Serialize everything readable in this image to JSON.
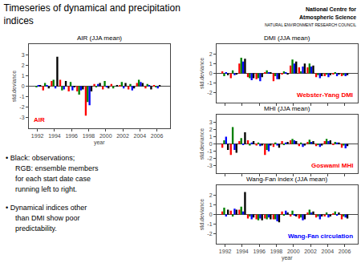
{
  "title": "Timeseries of dynamical and precipitation\nindices",
  "annotations": [
    "National Centre for",
    "Atmospheric Science",
    "NATURAL ENVIRONMENT RESEARCH COUNCIL",
    "• Black: observations;",
    "RGB: ensemble members",
    "for each start date case",
    "running left to right.",
    "• Dynamical indices other",
    "than DMI show poor",
    "predictability."
  ],
  "chart_data": [
    {
      "type": "bar",
      "title": "AIR (JJA mean)",
      "xlabel": "year",
      "ylabel": "std.deviance",
      "annotations": [
        {
          "text": "AIR",
          "color": "red"
        }
      ],
      "x": [
        1992,
        1993,
        1994,
        1995,
        1996,
        1997,
        1998,
        1999,
        2000,
        2001,
        2002,
        2003,
        2004,
        2005,
        2006
      ],
      "xlim": [
        1991.0,
        2007.5
      ],
      "xticks": [
        1992,
        1994,
        1996,
        1998,
        2000,
        2002,
        2004,
        2006
      ],
      "ylim": [
        -4,
        4
      ],
      "yticks": [
        -3,
        -2,
        -1,
        0,
        1,
        2,
        3
      ],
      "grid": false,
      "series": [
        {
          "color": "red",
          "values": [
            0.0,
            -0.4,
            0.5,
            0.6,
            -0.5,
            -0.5,
            -2.8,
            0.2,
            -0.3,
            0.2,
            0.1,
            -0.3,
            0.3,
            -0.2,
            0.1
          ]
        },
        {
          "color": "green",
          "values": [
            -0.1,
            0.3,
            0.6,
            -0.4,
            0.4,
            -0.8,
            -1.5,
            -0.1,
            0.5,
            -0.2,
            0.4,
            0.2,
            0.6,
            0.2,
            -0.1
          ]
        },
        {
          "color": "blue",
          "values": [
            0.1,
            0.1,
            -0.2,
            -0.3,
            -0.4,
            -0.4,
            -1.8,
            0.2,
            -0.1,
            0.0,
            -0.2,
            -0.4,
            0.4,
            0.1,
            -0.2
          ]
        },
        {
          "color": "black",
          "values": [
            0.1,
            -0.2,
            2.8,
            0.5,
            -0.1,
            -0.3,
            -0.5,
            0.3,
            -0.2,
            0.1,
            0.3,
            -0.2,
            0.3,
            -0.3,
            0.1
          ]
        }
      ]
    },
    {
      "type": "bar",
      "title": "DMI (JJA mean)",
      "ylabel": "std.deviance",
      "annotations": [
        {
          "text": "Webster-Yang DMI",
          "color": "red"
        }
      ],
      "x": [
        1992,
        1993,
        1994,
        1995,
        1996,
        1997,
        1998,
        1999,
        2000,
        2001,
        2002,
        2003,
        2004,
        2005,
        2006
      ],
      "xlim": [
        1991.0,
        2007.5
      ],
      "xticks": [
        1992,
        1994,
        1996,
        1998,
        2000,
        2002,
        2004,
        2006
      ],
      "ylim": [
        -3,
        3
      ],
      "yticks": [
        -2,
        -1,
        0,
        1,
        2
      ],
      "grid": false,
      "tick_labels": "y",
      "series": [
        {
          "color": "red",
          "values": [
            0.2,
            -0.5,
            1.0,
            -0.4,
            -0.6,
            0.1,
            -0.8,
            -0.1,
            0.8,
            0.6,
            0.6,
            -0.4,
            -0.3,
            -0.1,
            -0.3
          ]
        },
        {
          "color": "green",
          "values": [
            -0.3,
            0.3,
            1.6,
            -0.5,
            -0.5,
            0.3,
            -0.3,
            0.2,
            1.4,
            0.2,
            1.0,
            -0.2,
            -0.1,
            0.1,
            -0.2
          ]
        },
        {
          "color": "blue",
          "values": [
            0.1,
            -0.2,
            1.2,
            -0.7,
            -0.8,
            0.1,
            -0.6,
            0.1,
            1.0,
            0.7,
            0.7,
            -0.5,
            -0.4,
            -0.3,
            -0.3
          ]
        },
        {
          "color": "black",
          "values": [
            -0.2,
            -0.1,
            1.5,
            -0.5,
            -0.4,
            0.1,
            -0.6,
            -0.1,
            1.2,
            1.0,
            0.8,
            -0.3,
            -0.2,
            -0.1,
            -0.2
          ]
        }
      ]
    },
    {
      "type": "bar",
      "title": "MHI (JJA mean)",
      "ylabel": "std.deviance",
      "annotations": [
        {
          "text": "Goswami MHI",
          "color": "red"
        }
      ],
      "x": [
        1992,
        1993,
        1994,
        1995,
        1996,
        1997,
        1998,
        1999,
        2000,
        2001,
        2002,
        2003,
        2004,
        2005,
        2006
      ],
      "xlim": [
        1991.0,
        2007.5
      ],
      "xticks": [
        1992,
        1994,
        1996,
        1998,
        2000,
        2002,
        2004,
        2006
      ],
      "ylim": [
        -4,
        4
      ],
      "yticks": [
        -3,
        -2,
        -1,
        0,
        1,
        2,
        3
      ],
      "grid": false,
      "tick_labels": "y",
      "series": [
        {
          "color": "red",
          "values": [
            -0.5,
            -1.5,
            0.4,
            0.5,
            -0.2,
            -1.5,
            -0.4,
            0.4,
            0.5,
            -0.3,
            0.3,
            -0.3,
            0.4,
            -0.1,
            -0.5
          ]
        },
        {
          "color": "green",
          "values": [
            0.5,
            2.3,
            0.8,
            -0.2,
            0.2,
            -0.8,
            0.2,
            -0.1,
            0.7,
            0.2,
            0.6,
            -0.1,
            0.7,
            0.3,
            -0.2
          ]
        },
        {
          "color": "blue",
          "values": [
            1.0,
            -0.8,
            -0.1,
            0.2,
            -0.3,
            -1.0,
            -0.2,
            0.2,
            0.5,
            -0.4,
            0.3,
            -0.4,
            0.4,
            0.2,
            -0.6
          ]
        },
        {
          "color": "black",
          "values": [
            -0.8,
            -1.2,
            1.6,
            0.4,
            -0.2,
            -0.2,
            -0.5,
            0.3,
            0.4,
            -0.2,
            0.4,
            -0.2,
            0.5,
            0.2,
            -0.3
          ]
        }
      ]
    },
    {
      "type": "bar",
      "title": "Wang-Fan index (JJA mean)",
      "xlabel": "year",
      "ylabel": "std.deviance",
      "annotations": [
        {
          "text": "Wang-Fan circulation",
          "color": "blue"
        }
      ],
      "x": [
        1992,
        1993,
        1994,
        1995,
        1996,
        1997,
        1998,
        1999,
        2000,
        2001,
        2002,
        2003,
        2004,
        2005,
        2006
      ],
      "xlim": [
        1991.0,
        2007.5
      ],
      "xticks": [
        1992,
        1994,
        1996,
        1998,
        2000,
        2002,
        2004,
        2006
      ],
      "ylim": [
        -3,
        3
      ],
      "yticks": [
        -2,
        -1,
        0,
        1,
        2
      ],
      "grid": false,
      "series": [
        {
          "color": "red",
          "values": [
            0.3,
            0.4,
            0.5,
            -0.4,
            -0.5,
            -0.4,
            -0.5,
            0.3,
            -0.2,
            -0.4,
            0.2,
            -0.3,
            -0.2,
            0.1,
            -0.5
          ]
        },
        {
          "color": "green",
          "values": [
            0.7,
            -0.2,
            0.8,
            -0.2,
            -0.6,
            -0.5,
            -0.5,
            -0.1,
            0.4,
            -0.3,
            0.5,
            -0.2,
            0.2,
            0.3,
            -0.2
          ]
        },
        {
          "color": "blue",
          "values": [
            -0.2,
            0.6,
            0.3,
            -0.5,
            -0.4,
            -0.3,
            -0.7,
            0.4,
            -0.1,
            -0.6,
            0.2,
            -0.5,
            -0.3,
            -0.1,
            -0.3
          ]
        },
        {
          "color": "black",
          "values": [
            0.5,
            0.5,
            2.3,
            -0.3,
            -0.6,
            -0.5,
            -0.8,
            0.2,
            -0.2,
            -0.5,
            0.3,
            -0.2,
            -0.2,
            0.2,
            -0.4
          ]
        }
      ]
    }
  ]
}
